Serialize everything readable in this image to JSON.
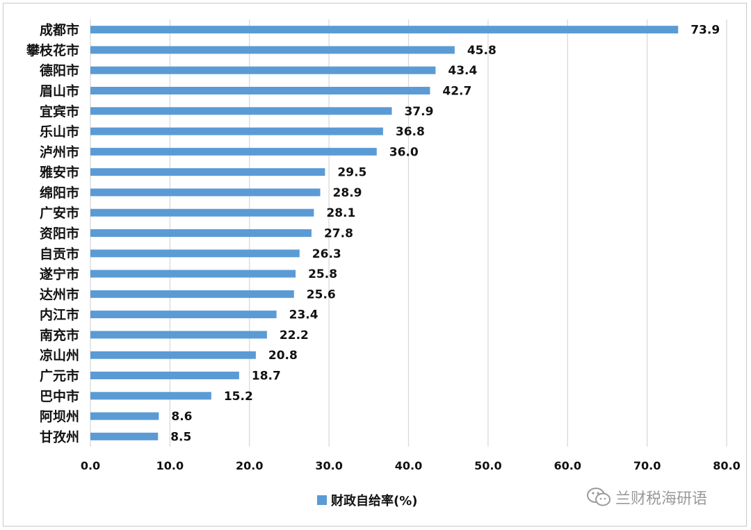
{
  "chart_data": {
    "type": "bar",
    "orientation": "horizontal",
    "categories": [
      "成都市",
      "攀枝花市",
      "德阳市",
      "眉山市",
      "宜宾市",
      "乐山市",
      "泸州市",
      "雅安市",
      "绵阳市",
      "广安市",
      "资阳市",
      "自贡市",
      "遂宁市",
      "达州市",
      "内江市",
      "南充市",
      "凉山州",
      "广元市",
      "巴中市",
      "阿坝州",
      "甘孜州"
    ],
    "series": [
      {
        "name": "财政自给率(%)",
        "values": [
          73.9,
          45.8,
          43.4,
          42.7,
          37.9,
          36.8,
          36.0,
          29.5,
          28.9,
          28.1,
          27.8,
          26.3,
          25.8,
          25.6,
          23.4,
          22.2,
          20.8,
          18.7,
          15.2,
          8.6,
          8.5
        ],
        "labels": [
          "73.9",
          "45.8",
          "43.4",
          "42.7",
          "37.9",
          "36.8",
          "36.0",
          "29.5",
          "28.9",
          "28.1",
          "27.8",
          "26.3",
          "25.8",
          "25.6",
          "23.4",
          "22.2",
          "20.8",
          "18.7",
          "15.2",
          "8.6",
          "8.5"
        ]
      }
    ],
    "xlim": [
      0,
      80
    ],
    "xticks": [
      "0.0",
      "10.0",
      "20.0",
      "30.0",
      "40.0",
      "50.0",
      "60.0",
      "70.0",
      "80.0"
    ],
    "grid": true,
    "legend_position": "bottom",
    "bar_color": "#5b9bd5"
  },
  "watermark": {
    "text": "兰财税海研语",
    "icon": "wechat-icon"
  }
}
